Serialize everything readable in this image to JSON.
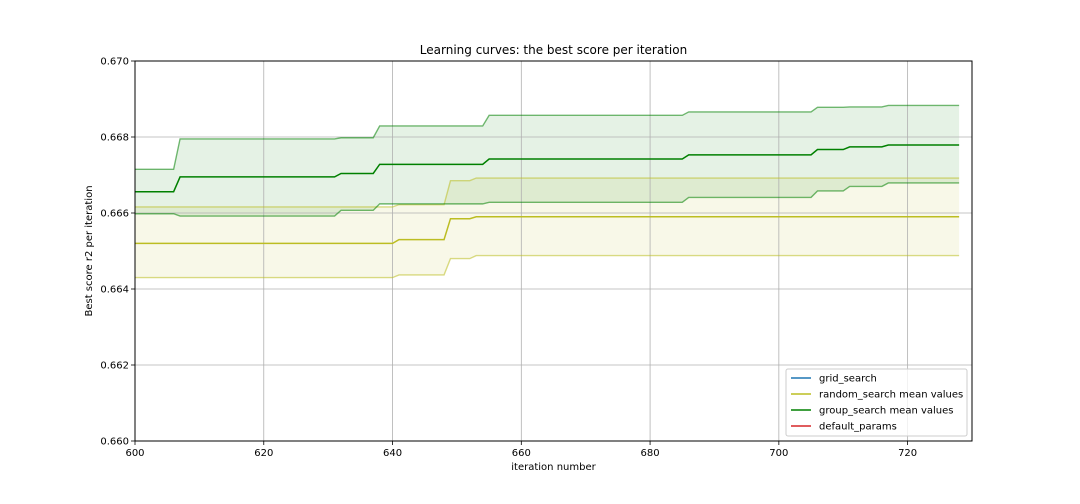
{
  "chart_data": {
    "type": "line",
    "title": "Learning curves: the best score per iteration",
    "xlabel": "iteration number",
    "ylabel": "Best score r2 per iteration",
    "xlim": [
      600,
      730
    ],
    "ylim": [
      0.66,
      0.67
    ],
    "xticks": [
      600,
      620,
      640,
      660,
      680,
      700,
      720
    ],
    "xtick_labels": [
      "600",
      "620",
      "640",
      "660",
      "680",
      "700",
      "720"
    ],
    "yticks": [
      0.66,
      0.662,
      0.664,
      0.666,
      0.668,
      0.67
    ],
    "ytick_labels": [
      "0.660",
      "0.662",
      "0.664",
      "0.666",
      "0.668",
      "0.670"
    ],
    "grid": true,
    "legend_position": "bottom-right",
    "colors": {
      "grid_search": "#1f77b4",
      "random_search": "#bcbd22",
      "group_search": "#008000",
      "default_params": "#d62728"
    },
    "series": [
      {
        "name": "grid_search",
        "color": "#1f77b4",
        "x": [],
        "y": []
      },
      {
        "name": "random_search mean values",
        "color": "#bcbd22",
        "x": [
          600,
          640,
          641,
          648,
          649,
          652,
          653,
          655,
          728
        ],
        "y": [
          0.6652,
          0.6652,
          0.6653,
          0.6653,
          0.66585,
          0.66585,
          0.6659,
          0.6659,
          0.6659
        ],
        "band_x": [
          600,
          640,
          641,
          648,
          649,
          652,
          653,
          655,
          728
        ],
        "band_lower": [
          0.6643,
          0.6643,
          0.66437,
          0.66437,
          0.6648,
          0.6648,
          0.66488,
          0.66488,
          0.66488
        ],
        "band_upper": [
          0.66616,
          0.66616,
          0.66622,
          0.66622,
          0.66685,
          0.66685,
          0.66692,
          0.66692,
          0.66692
        ]
      },
      {
        "name": "group_search mean values",
        "color": "#008000",
        "x": [
          600,
          606,
          607,
          631,
          632,
          637,
          638,
          654,
          655,
          685,
          686,
          705,
          706,
          710,
          711,
          716,
          717,
          728
        ],
        "y": [
          0.66656,
          0.66656,
          0.66695,
          0.66695,
          0.66704,
          0.66704,
          0.66728,
          0.66728,
          0.66742,
          0.66742,
          0.66753,
          0.66753,
          0.66767,
          0.66767,
          0.66774,
          0.66774,
          0.66779,
          0.66779
        ],
        "band_x": [
          600,
          606,
          607,
          631,
          632,
          637,
          638,
          654,
          655,
          685,
          686,
          705,
          706,
          710,
          711,
          716,
          717,
          728
        ],
        "band_lower": [
          0.66598,
          0.66598,
          0.66592,
          0.66592,
          0.66607,
          0.66607,
          0.66624,
          0.66624,
          0.66628,
          0.66628,
          0.66641,
          0.66641,
          0.66658,
          0.66658,
          0.6667,
          0.6667,
          0.66679,
          0.66679
        ],
        "band_upper": [
          0.66715,
          0.66715,
          0.66795,
          0.66795,
          0.66798,
          0.66798,
          0.66829,
          0.66829,
          0.66857,
          0.66857,
          0.66866,
          0.66866,
          0.66878,
          0.66878,
          0.66879,
          0.66879,
          0.66883,
          0.66883
        ]
      },
      {
        "name": "default_params",
        "color": "#d62728",
        "x": [],
        "y": []
      }
    ]
  }
}
